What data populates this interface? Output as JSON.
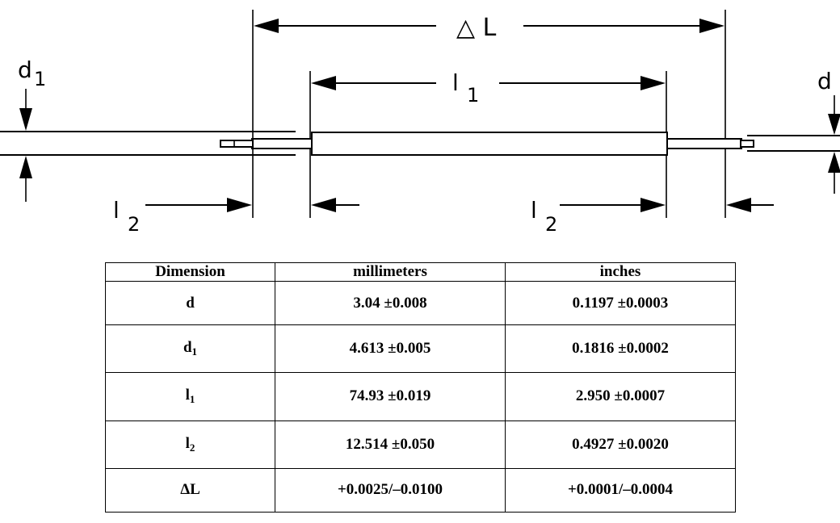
{
  "drawing": {
    "labels": {
      "delta_l": "△ L",
      "l1_main": "l",
      "l1_sub": "1",
      "d1_main": "d",
      "d1_sub": "1",
      "d": "d",
      "l2_left_main": "l",
      "l2_left_sub": "2",
      "l2_right_main": "l",
      "l2_right_sub": "2"
    }
  },
  "table": {
    "headers": [
      "Dimension",
      "millimeters",
      "inches"
    ],
    "rows": [
      {
        "dim": "d",
        "dim_sub": "",
        "mm": "3.04 ±0.008",
        "in": "0.1197 ±0.0003"
      },
      {
        "dim": "d",
        "dim_sub": "1",
        "mm": "4.613 ±0.005",
        "in": "0.1816 ±0.0002"
      },
      {
        "dim": "l",
        "dim_sub": "1",
        "mm": "74.93 ±0.019",
        "in": "2.950 ±0.0007"
      },
      {
        "dim": "l",
        "dim_sub": "2",
        "mm": "12.514 ±0.050",
        "in": "0.4927 ±0.0020"
      },
      {
        "dim": "ΔL",
        "dim_sub": "",
        "mm": "+0.0025/–0.0100",
        "in": "+0.0001/–0.0004"
      }
    ]
  }
}
